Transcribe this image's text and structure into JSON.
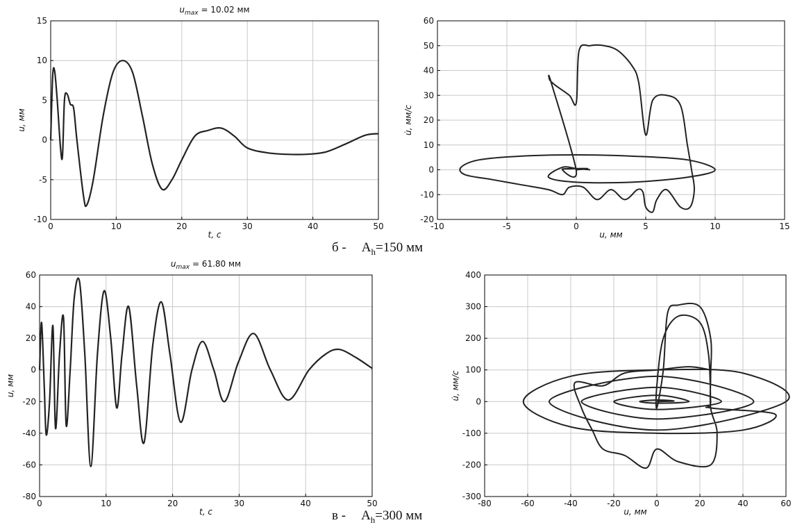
{
  "chart_data": [
    {
      "type": "line",
      "title_var": "u",
      "title_sub": "max",
      "title": " = 10.02 мм",
      "xlabel": "t, с",
      "ylabel": "u, мм",
      "color": "#222222",
      "grid": true,
      "x": [
        0,
        0.3,
        0.6,
        1.0,
        1.5,
        1.8,
        2.1,
        2.5,
        3.0,
        3.5,
        4.0,
        5.0,
        5.5,
        6.5,
        8,
        9.5,
        11,
        12.5,
        14,
        15.5,
        17,
        18.5,
        20,
        22,
        24,
        26,
        28,
        30,
        33,
        36,
        39,
        42,
        45,
        48,
        50
      ],
      "values": [
        0,
        8,
        8.7,
        5,
        -1,
        -2,
        5,
        5.8,
        4.5,
        4,
        0,
        -7,
        -8.2,
        -5,
        3,
        8.5,
        10,
        8.5,
        3,
        -3,
        -6.2,
        -5,
        -2.5,
        0.5,
        1.2,
        1.5,
        0.5,
        -1,
        -1.6,
        -1.8,
        -1.8,
        -1.5,
        -0.5,
        0.6,
        0.8
      ],
      "xlim": [
        0,
        50
      ],
      "xticks": [
        0,
        10,
        20,
        30,
        40,
        50
      ],
      "ylim": [
        -10,
        15
      ],
      "yticks": [
        -10,
        -5,
        0,
        5,
        10,
        15
      ]
    },
    {
      "type": "phase",
      "xlabel": "u, мм",
      "ylabel": "u̇, мм/с",
      "color": "#222222",
      "grid": true,
      "x": [
        0,
        0.8,
        -1,
        0,
        -1.8,
        -1.9,
        -1.5,
        -0.5,
        0,
        0.2,
        1,
        2,
        3,
        4,
        4.5,
        5,
        5.5,
        6.5,
        7.5,
        8,
        8.3,
        8.5,
        8.2,
        7.5,
        6.5,
        5.8,
        5.5,
        5,
        4.8,
        4.4,
        3.5,
        2.5,
        1.5,
        0.5,
        -0.5,
        -1,
        -2,
        -4,
        -6,
        -8,
        -8.3,
        -7,
        -4,
        0,
        4,
        8,
        10,
        8,
        4,
        0,
        -2,
        -1,
        0,
        1
      ],
      "values": [
        0,
        0.5,
        0.3,
        -0.5,
        35,
        36,
        34,
        30,
        27,
        48,
        50,
        50,
        48,
        42,
        35,
        14,
        28,
        30,
        26,
        10,
        0,
        -8,
        -15,
        -15,
        -8,
        -12,
        -17,
        -15,
        -9,
        -8,
        -12,
        -8,
        -12,
        -7,
        -7,
        -10,
        -8,
        -6,
        -4,
        -2,
        1,
        4,
        5.5,
        6,
        5.5,
        4,
        0,
        -3,
        -5,
        -5,
        -3,
        1,
        0.5,
        0
      ],
      "xlim": [
        -10,
        15
      ],
      "xticks": [
        -10,
        -5,
        0,
        5,
        10,
        15
      ],
      "ylim": [
        -20,
        60
      ],
      "yticks": [
        -20,
        -10,
        0,
        10,
        20,
        30,
        40,
        50,
        60
      ]
    },
    {
      "type": "line",
      "title_var": "u",
      "title_sub": "max",
      "title": " = 61.80 мм",
      "xlabel": "t, с",
      "ylabel": "u, мм",
      "color": "#222222",
      "grid": true,
      "x": [
        0,
        0.3,
        0.7,
        1.0,
        1.5,
        2.0,
        2.4,
        3.0,
        3.6,
        4.0,
        4.6,
        5.2,
        6.0,
        6.8,
        7.7,
        8.7,
        9.7,
        10.7,
        11.6,
        12.4,
        13.4,
        14.6,
        15.7,
        17.0,
        18.3,
        19.6,
        21.2,
        22.9,
        24.5,
        26.2,
        27.8,
        29.9,
        32.2,
        34.7,
        37.4,
        40.5,
        43,
        45,
        47.5,
        50
      ],
      "values": [
        0,
        30,
        -10,
        -41,
        -20,
        28,
        -37,
        10,
        33,
        -35,
        0,
        45,
        56,
        10,
        -61,
        10,
        50,
        20,
        -24,
        10,
        40,
        -10,
        -46,
        15,
        43,
        10,
        -33,
        0,
        18,
        0,
        -20,
        5,
        23,
        0,
        -19,
        0,
        10,
        13,
        8,
        1
      ],
      "xlim": [
        0,
        50
      ],
      "xticks": [
        0,
        10,
        20,
        30,
        40,
        50
      ],
      "ylim": [
        -80,
        60
      ],
      "yticks": [
        -80,
        -60,
        -40,
        -20,
        0,
        20,
        40,
        60
      ]
    },
    {
      "type": "phase",
      "xlabel": "u, мм",
      "ylabel": "u̇, мм/с",
      "color": "#222222",
      "grid": true,
      "x": [
        0,
        8,
        0,
        -8,
        0,
        15,
        0,
        -20,
        0,
        30,
        0,
        -35,
        0,
        45,
        0,
        -50,
        0,
        60,
        40,
        0,
        -40,
        -62,
        -40,
        0,
        40,
        55,
        25,
        25,
        24,
        20,
        10,
        3,
        0,
        0,
        3,
        5,
        10,
        20,
        25,
        25,
        25,
        28,
        25,
        10,
        0,
        -5,
        -15,
        -25,
        -30,
        -35,
        -38,
        -25,
        -15,
        0,
        15,
        25
      ],
      "values": [
        0,
        2,
        5,
        0,
        -5,
        0,
        20,
        0,
        -25,
        0,
        45,
        0,
        -55,
        0,
        80,
        0,
        -90,
        0,
        90,
        100,
        80,
        0,
        -80,
        -100,
        -90,
        -40,
        -20,
        0,
        150,
        250,
        270,
        200,
        50,
        -20,
        100,
        280,
        305,
        300,
        200,
        80,
        -20,
        -100,
        -200,
        -190,
        -150,
        -210,
        -170,
        -150,
        -90,
        -20,
        60,
        50,
        90,
        100,
        110,
        100
      ],
      "xlim": [
        -80,
        60
      ],
      "xticks": [
        -80,
        -60,
        -40,
        -20,
        0,
        20,
        40,
        60
      ],
      "ylim": [
        -300,
        400
      ],
      "yticks": [
        -300,
        -200,
        -100,
        0,
        100,
        200,
        300,
        400
      ]
    }
  ],
  "captions": [
    {
      "letter": "б -",
      "symbol": "A",
      "sub": "h",
      "rest": "=150 мм"
    },
    {
      "letter": "в -",
      "symbol": "A",
      "sub": "h",
      "rest": "=300 мм"
    }
  ]
}
